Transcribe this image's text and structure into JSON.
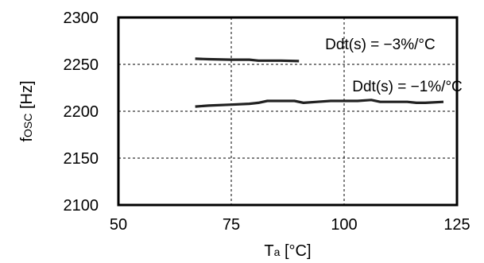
{
  "chart_data": {
    "type": "line",
    "title": "",
    "xlabel": {
      "main": "T",
      "sub": "a",
      "unit": " [°C]"
    },
    "ylabel": {
      "main": "f",
      "sub": "OSC",
      "unit": " [Hz]"
    },
    "xlim": [
      50,
      125
    ],
    "ylim": [
      2100,
      2300
    ],
    "xticks": [
      50,
      75,
      100,
      125
    ],
    "yticks": [
      2100,
      2150,
      2200,
      2250,
      2300
    ],
    "grid": true,
    "series": [
      {
        "x": [
          67,
          70,
          75,
          79,
          81,
          83,
          86,
          90
        ],
        "y": [
          2256,
          2255.5,
          2255,
          2255,
          2254,
          2254,
          2254,
          2253.5
        ]
      },
      {
        "x": [
          67,
          70,
          75,
          79,
          81,
          83,
          86,
          89,
          91,
          94,
          97,
          100,
          103,
          106,
          108,
          111,
          114,
          116,
          118,
          122
        ],
        "y": [
          2205,
          2206,
          2207,
          2208,
          2209,
          2211,
          2211,
          2211,
          2209,
          2210,
          2211,
          2211,
          2211,
          2212,
          2210,
          2210,
          2210,
          2209,
          2209,
          2210
        ]
      }
    ],
    "annotations": [
      {
        "text": "Ddt(s) = −3%/°C",
        "x": 108,
        "y": 2272
      },
      {
        "text": "Ddt(s) = −1%/°C",
        "x": 114,
        "y": 2227
      }
    ]
  }
}
